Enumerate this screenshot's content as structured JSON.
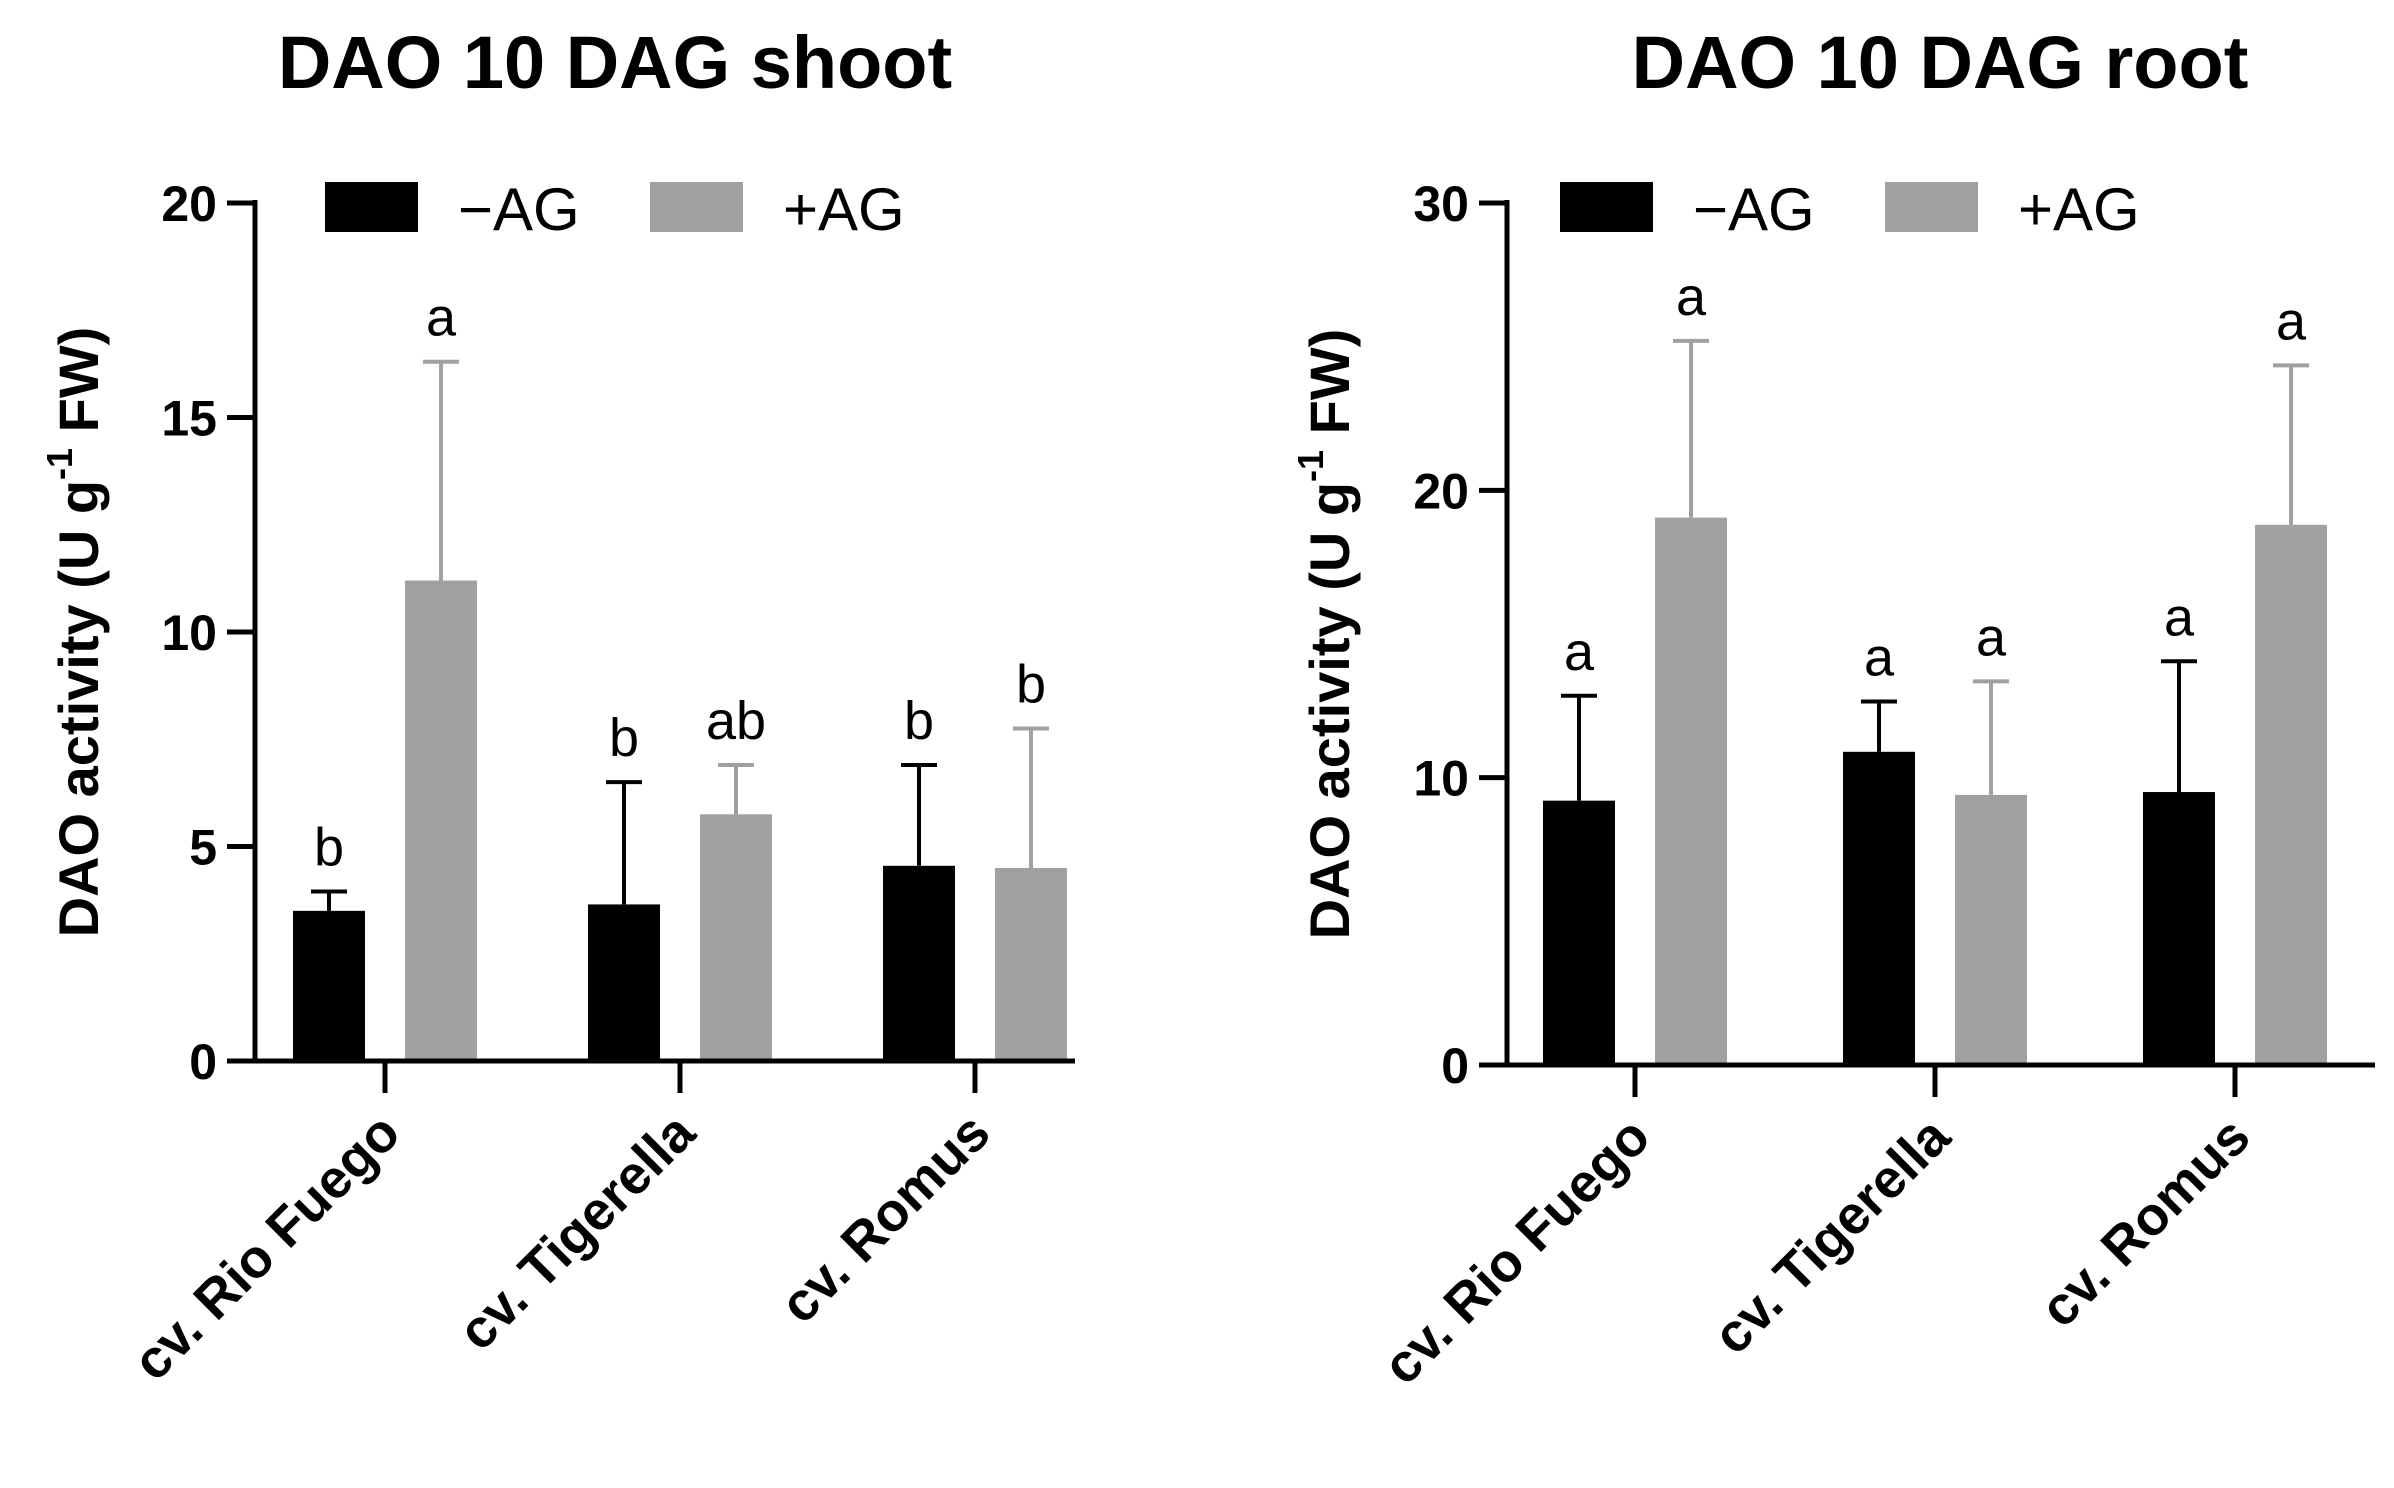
{
  "chart_data": [
    {
      "type": "bar",
      "title": "DAO 10 DAG shoot",
      "ylabel": "DAO activity (U g",
      "ylabel_sup": "-1",
      "ylabel_suffix": " FW)",
      "xlabel": "",
      "ylim": [
        0,
        20
      ],
      "yticks": [
        0,
        5,
        10,
        15,
        20
      ],
      "categories": [
        "cv. Rio Fuego",
        "cv. Tigerella",
        "cv. Romus"
      ],
      "series": [
        {
          "name": "−AG",
          "color": "#000000",
          "values": [
            3.5,
            3.65,
            4.55
          ],
          "errors": [
            0.45,
            2.85,
            2.35
          ],
          "labels": [
            "b",
            "b",
            "b"
          ]
        },
        {
          "name": "+AG",
          "color": "#a0a0a0",
          "values": [
            11.2,
            5.75,
            4.5
          ],
          "errors": [
            5.1,
            1.15,
            3.25
          ],
          "labels": [
            "a",
            "ab",
            "b"
          ]
        }
      ],
      "legend": "top-left"
    },
    {
      "type": "bar",
      "title": "DAO 10 DAG root",
      "ylabel": "DAO activity (U g",
      "ylabel_sup": "-1",
      "ylabel_suffix": " FW)",
      "xlabel": "",
      "ylim": [
        0,
        30
      ],
      "yticks": [
        0,
        10,
        20,
        30
      ],
      "categories": [
        "cv. Rio Fuego",
        "cv. Tigerella",
        "cv. Romus"
      ],
      "series": [
        {
          "name": "−AG",
          "color": "#000000",
          "values": [
            9.2,
            10.9,
            9.5
          ],
          "errors": [
            3.65,
            1.75,
            4.55
          ],
          "labels": [
            "a",
            "a",
            "a"
          ]
        },
        {
          "name": "+AG",
          "color": "#a0a0a0",
          "values": [
            19.05,
            9.4,
            18.8
          ],
          "errors": [
            6.15,
            3.95,
            5.55
          ],
          "labels": [
            "a",
            "a",
            "a"
          ]
        }
      ],
      "legend": "top-left"
    }
  ]
}
